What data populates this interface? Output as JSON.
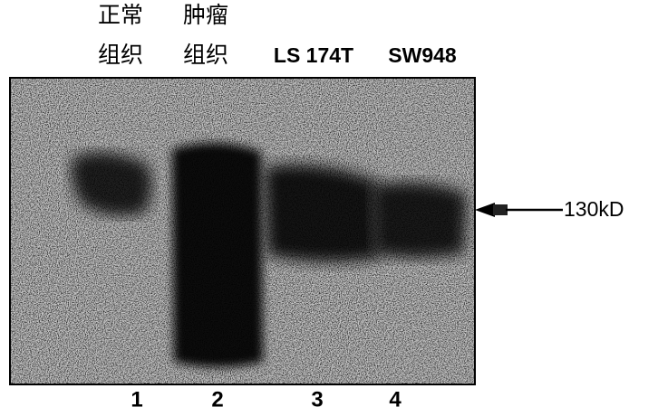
{
  "lanes": [
    {
      "label_lines": [
        "正常",
        "组织"
      ],
      "number": "1"
    },
    {
      "label_lines": [
        "肿瘤",
        "组织"
      ],
      "number": "2"
    },
    {
      "label_lines": [
        "LS 174T"
      ],
      "number": "3"
    },
    {
      "label_lines": [
        "SW948"
      ],
      "number": "4"
    }
  ],
  "marker": "130kD"
}
